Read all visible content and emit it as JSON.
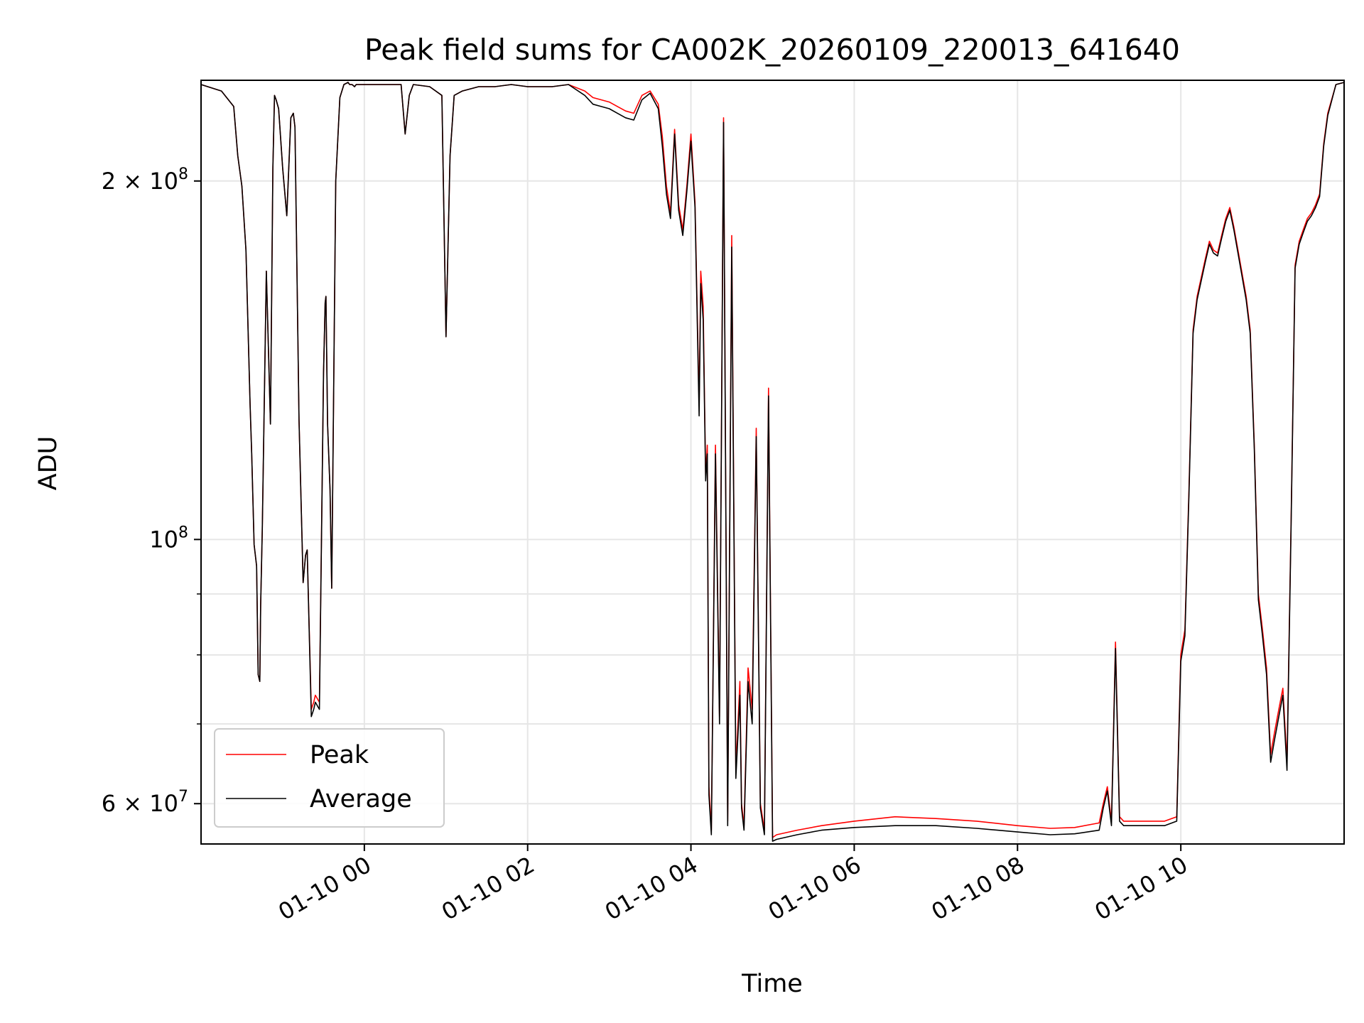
{
  "chart_data": {
    "type": "line",
    "title": "Peak field sums for CA002K_20260109_220013_641640",
    "xlabel": "Time",
    "ylabel": "ADU",
    "y_scale": "log",
    "x_unit": "hours",
    "xlim": [
      -2.0,
      12.0
    ],
    "ylim": [
      55500000,
      243000000
    ],
    "grid": true,
    "legend_placement": "lower left",
    "x_ticks": [
      {
        "value": 0,
        "label": "01-10 00"
      },
      {
        "value": 2,
        "label": "01-10 02"
      },
      {
        "value": 4,
        "label": "01-10 04"
      },
      {
        "value": 6,
        "label": "01-10 06"
      },
      {
        "value": 8,
        "label": "01-10 08"
      },
      {
        "value": 10,
        "label": "01-10 10"
      }
    ],
    "y_major_ticks": [
      {
        "value": 60000000,
        "mantissa": "6 × 10",
        "exp": "7"
      },
      {
        "value": 100000000,
        "mantissa": "10",
        "exp": "8"
      },
      {
        "value": 200000000,
        "mantissa": "2 × 10",
        "exp": "8"
      }
    ],
    "y_minor_ticks": [
      70000000,
      80000000,
      90000000
    ],
    "colors": {
      "peak": "#ff0000",
      "average": "#000000",
      "grid": "#e6e6e6"
    },
    "series": [
      {
        "name": "Peak",
        "color": "#ff0000",
        "x": [
          -2.0,
          -1.75,
          -1.6,
          -1.55,
          -1.5,
          -1.45,
          -1.4,
          -1.38,
          -1.35,
          -1.32,
          -1.3,
          -1.28,
          -1.27,
          -1.25,
          -1.2,
          -1.15,
          -1.12,
          -1.1,
          -1.08,
          -1.05,
          -1.0,
          -0.95,
          -0.9,
          -0.87,
          -0.85,
          -0.8,
          -0.75,
          -0.72,
          -0.7,
          -0.65,
          -0.62,
          -0.6,
          -0.55,
          -0.5,
          -0.48,
          -0.47,
          -0.45,
          -0.42,
          -0.4,
          -0.35,
          -0.3,
          -0.25,
          -0.2,
          -0.18,
          -0.15,
          -0.12,
          -0.1,
          -0.05,
          0.0,
          0.3,
          0.45,
          0.5,
          0.55,
          0.6,
          0.8,
          0.95,
          1.0,
          1.05,
          1.1,
          1.2,
          1.4,
          1.6,
          1.8,
          2.0,
          2.3,
          2.5,
          2.7,
          2.8,
          2.9,
          3.0,
          3.1,
          3.2,
          3.3,
          3.4,
          3.5,
          3.6,
          3.65,
          3.7,
          3.75,
          3.8,
          3.85,
          3.9,
          3.95,
          4.0,
          4.05,
          4.1,
          4.12,
          4.15,
          4.18,
          4.2,
          4.22,
          4.25,
          4.3,
          4.35,
          4.4,
          4.45,
          4.5,
          4.55,
          4.6,
          4.62,
          4.65,
          4.7,
          4.75,
          4.8,
          4.85,
          4.9,
          4.95,
          5.0,
          5.05,
          5.3,
          5.6,
          6.0,
          6.5,
          7.0,
          7.5,
          8.0,
          8.4,
          8.7,
          9.0,
          9.05,
          9.1,
          9.15,
          9.2,
          9.25,
          9.3,
          9.5,
          9.8,
          9.95,
          10.0,
          10.05,
          10.1,
          10.15,
          10.2,
          10.3,
          10.35,
          10.4,
          10.45,
          10.5,
          10.55,
          10.6,
          10.65,
          10.7,
          10.8,
          10.85,
          10.9,
          10.95,
          11.0,
          11.05,
          11.1,
          11.15,
          11.2,
          11.25,
          11.3,
          11.35,
          11.4,
          11.45,
          11.5,
          11.55,
          11.6,
          11.65,
          11.7,
          11.75,
          11.8,
          11.9,
          12.0
        ],
        "values": [
          241000000,
          238000000,
          231000000,
          210000000,
          198000000,
          175000000,
          130000000,
          118000000,
          99000000,
          95000000,
          77000000,
          76000000,
          88000000,
          102000000,
          168000000,
          125000000,
          205000000,
          236000000,
          234000000,
          230000000,
          205000000,
          187000000,
          226000000,
          228000000,
          222000000,
          126000000,
          92000000,
          97000000,
          98000000,
          72000000,
          73000000,
          74000000,
          73000000,
          138000000,
          158000000,
          160000000,
          125000000,
          110000000,
          91000000,
          200000000,
          235000000,
          241000000,
          242000000,
          241000000,
          241000000,
          240000000,
          241000000,
          241000000,
          241000000,
          241000000,
          241000000,
          219000000,
          236000000,
          241000000,
          240000000,
          236000000,
          148000000,
          210000000,
          236000000,
          238000000,
          240000000,
          240000000,
          241000000,
          240000000,
          240000000,
          241000000,
          238000000,
          235000000,
          234000000,
          233000000,
          231000000,
          229000000,
          228000000,
          236000000,
          238000000,
          232000000,
          218000000,
          198000000,
          188000000,
          221000000,
          191000000,
          182000000,
          198000000,
          219000000,
          192000000,
          130000000,
          168000000,
          157000000,
          113000000,
          120000000,
          62000000,
          57000000,
          120000000,
          71000000,
          226000000,
          58000000,
          180000000,
          64000000,
          76000000,
          60000000,
          57500000,
          78000000,
          72000000,
          124000000,
          60000000,
          57000000,
          134000000,
          56200000,
          56500000,
          57000000,
          57500000,
          58000000,
          58500000,
          58300000,
          58000000,
          57500000,
          57200000,
          57300000,
          57800000,
          60000000,
          62000000,
          58000000,
          82000000,
          58500000,
          58000000,
          58000000,
          58000000,
          58500000,
          80000000,
          84000000,
          110000000,
          150000000,
          160000000,
          172000000,
          178000000,
          175000000,
          174000000,
          180000000,
          186000000,
          190000000,
          183000000,
          175000000,
          160000000,
          150000000,
          120000000,
          90000000,
          84000000,
          78000000,
          66000000,
          69000000,
          72000000,
          75000000,
          65000000,
          103000000,
          170000000,
          178000000,
          182000000,
          186000000,
          188000000,
          191000000,
          195000000,
          215000000,
          228000000,
          241000000,
          242000000
        ]
      },
      {
        "name": "Average",
        "color": "#000000",
        "x": [
          -2.0,
          -1.75,
          -1.6,
          -1.55,
          -1.5,
          -1.45,
          -1.4,
          -1.38,
          -1.35,
          -1.32,
          -1.3,
          -1.28,
          -1.27,
          -1.25,
          -1.2,
          -1.15,
          -1.12,
          -1.1,
          -1.08,
          -1.05,
          -1.0,
          -0.95,
          -0.9,
          -0.87,
          -0.85,
          -0.8,
          -0.75,
          -0.72,
          -0.7,
          -0.65,
          -0.62,
          -0.6,
          -0.55,
          -0.5,
          -0.48,
          -0.47,
          -0.45,
          -0.42,
          -0.4,
          -0.35,
          -0.3,
          -0.25,
          -0.2,
          -0.18,
          -0.15,
          -0.12,
          -0.1,
          -0.05,
          0.0,
          0.3,
          0.45,
          0.5,
          0.55,
          0.6,
          0.8,
          0.95,
          1.0,
          1.05,
          1.1,
          1.2,
          1.4,
          1.6,
          1.8,
          2.0,
          2.3,
          2.5,
          2.7,
          2.8,
          2.9,
          3.0,
          3.1,
          3.2,
          3.3,
          3.4,
          3.5,
          3.6,
          3.65,
          3.7,
          3.75,
          3.8,
          3.85,
          3.9,
          3.95,
          4.0,
          4.05,
          4.1,
          4.12,
          4.15,
          4.18,
          4.2,
          4.22,
          4.25,
          4.3,
          4.35,
          4.4,
          4.45,
          4.5,
          4.55,
          4.6,
          4.62,
          4.65,
          4.7,
          4.75,
          4.8,
          4.85,
          4.9,
          4.95,
          5.0,
          5.05,
          5.3,
          5.6,
          6.0,
          6.5,
          7.0,
          7.5,
          8.0,
          8.4,
          8.7,
          9.0,
          9.05,
          9.1,
          9.15,
          9.2,
          9.25,
          9.3,
          9.5,
          9.8,
          9.95,
          10.0,
          10.05,
          10.1,
          10.15,
          10.2,
          10.3,
          10.35,
          10.4,
          10.45,
          10.5,
          10.55,
          10.6,
          10.65,
          10.7,
          10.8,
          10.85,
          10.9,
          10.95,
          11.0,
          11.05,
          11.1,
          11.15,
          11.2,
          11.25,
          11.3,
          11.35,
          11.4,
          11.45,
          11.5,
          11.55,
          11.6,
          11.65,
          11.7,
          11.75,
          11.8,
          11.9,
          12.0
        ],
        "values": [
          241000000,
          238000000,
          231000000,
          210000000,
          198000000,
          175000000,
          130000000,
          118000000,
          99000000,
          95000000,
          77000000,
          76000000,
          88000000,
          102000000,
          168000000,
          125000000,
          205000000,
          236000000,
          234000000,
          230000000,
          205000000,
          187000000,
          226000000,
          228000000,
          222000000,
          126000000,
          92000000,
          97000000,
          98000000,
          71000000,
          72000000,
          73000000,
          72000000,
          138000000,
          158000000,
          160000000,
          125000000,
          110000000,
          91000000,
          200000000,
          235000000,
          241000000,
          242000000,
          241000000,
          241000000,
          240000000,
          241000000,
          241000000,
          241000000,
          241000000,
          241000000,
          219000000,
          236000000,
          241000000,
          240000000,
          236000000,
          148000000,
          210000000,
          236000000,
          238000000,
          240000000,
          240000000,
          241000000,
          240000000,
          240000000,
          241000000,
          236000000,
          232000000,
          231000000,
          230000000,
          228000000,
          226000000,
          225000000,
          234000000,
          237000000,
          230000000,
          214000000,
          195000000,
          186000000,
          219000000,
          189000000,
          180000000,
          196000000,
          216000000,
          190000000,
          127000000,
          164000000,
          153000000,
          112000000,
          118000000,
          61000000,
          56500000,
          118000000,
          70000000,
          224000000,
          57500000,
          176000000,
          63000000,
          74000000,
          59500000,
          57000000,
          76000000,
          70000000,
          122000000,
          59500000,
          56500000,
          132000000,
          55800000,
          56000000,
          56500000,
          57000000,
          57300000,
          57500000,
          57500000,
          57200000,
          56800000,
          56500000,
          56600000,
          57000000,
          59500000,
          61500000,
          57500000,
          81000000,
          58000000,
          57500000,
          57500000,
          57500000,
          58000000,
          79000000,
          83000000,
          109000000,
          149000000,
          159000000,
          171000000,
          177000000,
          174000000,
          173000000,
          179000000,
          185000000,
          189000000,
          182000000,
          174000000,
          159000000,
          149000000,
          119000000,
          89000000,
          83000000,
          77000000,
          65000000,
          68000000,
          71000000,
          74000000,
          64000000,
          102000000,
          169000000,
          177000000,
          181000000,
          185000000,
          187000000,
          190000000,
          194000000,
          214000000,
          227000000,
          241000000,
          242000000
        ]
      }
    ]
  }
}
